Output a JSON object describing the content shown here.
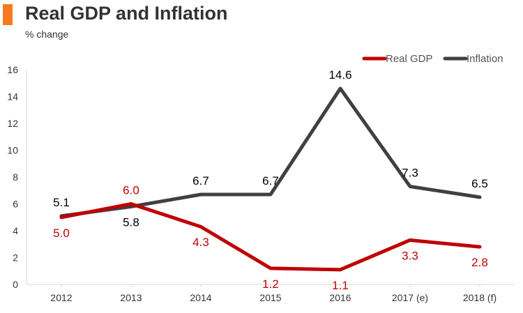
{
  "colors": {
    "accent": "#F47B20",
    "gdp": "#C00000",
    "inflation": "#404040",
    "axis": "#D9D9D9",
    "label_dark": "#000000"
  },
  "chart_data": {
    "type": "line",
    "title": "Real GDP and Inflation",
    "subtitle": "% change",
    "xlabel": "",
    "ylabel": "",
    "categories": [
      "2012",
      "2013",
      "2014",
      "2015",
      "2016",
      "2017 (e)",
      "2018 (f)"
    ],
    "ylim": [
      0,
      16
    ],
    "yticks": [
      "0",
      "2",
      "4",
      "6",
      "8",
      "10",
      "12",
      "14",
      "16"
    ],
    "grid": false,
    "legend_position": "top-right",
    "series": [
      {
        "name": "Real GDP",
        "values": [
          5.0,
          6.0,
          4.3,
          1.2,
          1.1,
          3.3,
          2.8
        ],
        "labels": [
          "5.0",
          "6.0",
          "4.3",
          "1.2",
          "1.1",
          "3.3",
          "2.8"
        ]
      },
      {
        "name": "Inflation",
        "values": [
          5.1,
          5.8,
          6.7,
          6.7,
          14.6,
          7.3,
          6.5
        ],
        "labels": [
          "5.1",
          "5.8",
          "6.7",
          "6.7",
          "14.6",
          "7.3",
          "6.5"
        ]
      }
    ]
  }
}
